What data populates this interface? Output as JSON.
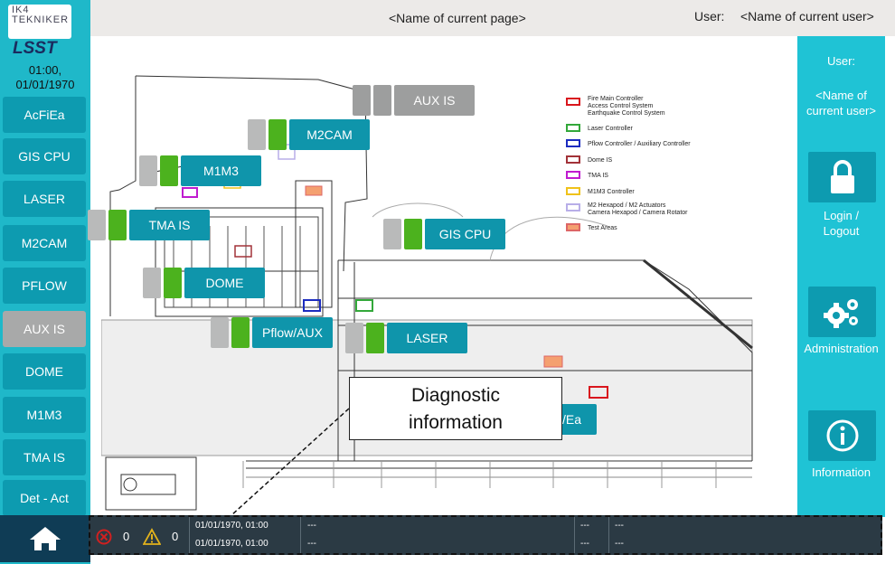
{
  "header": {
    "page_title": "<Name of current page>",
    "user_label": "User:",
    "user_name": "<Name of current user>"
  },
  "logo": {
    "top_line1": "IK4",
    "top_line2": "TEKNIKER",
    "brand": "LSST"
  },
  "clock": {
    "time": "01:00,",
    "date": "01/01/1970"
  },
  "sidebar": {
    "items": [
      {
        "label": "AcFiEa"
      },
      {
        "label": "GIS CPU"
      },
      {
        "label": "LASER"
      },
      {
        "label": "M2CAM"
      },
      {
        "label": "PFLOW"
      },
      {
        "label": "AUX IS"
      },
      {
        "label": "DOME"
      },
      {
        "label": "M1M3"
      },
      {
        "label": "TMA IS"
      },
      {
        "label": "Det - Act"
      }
    ],
    "active": "AUX IS",
    "home_icon": "home-icon"
  },
  "right_panel": {
    "user_label": "User:",
    "user_name_line1": "<Name of",
    "user_name_line2": "current user>",
    "login_line1": "Login /",
    "login_line2": "Logout",
    "admin": "Administration",
    "info": "Information",
    "icons": [
      "lock-icon",
      "gears-icon",
      "info-icon"
    ]
  },
  "overlay_tags": {
    "aux_is": "AUX IS",
    "m2cam": "M2CAM",
    "m1m3": "M1M3",
    "tma_is": "TMA IS",
    "gis_cpu": "GIS CPU",
    "dome": "DOME",
    "pflow": "Pflow/AUX",
    "laser": "LASER",
    "acfiea_partial": "/Ea"
  },
  "legend": [
    {
      "text": "Fire Main Controller",
      "color": "#d9161d"
    },
    {
      "text": "Access Control System",
      "color": ""
    },
    {
      "text": "Earthquake Control System",
      "color": ""
    },
    {
      "text": "Laser Controller",
      "color": "#33a83a"
    },
    {
      "text": "Pflow Controller / Auxiliary Controller",
      "color": "#1c2cbf"
    },
    {
      "text": "Dome IS",
      "color": "#a23238"
    },
    {
      "text": "TMA IS",
      "color": "#c01bd0"
    },
    {
      "text": "M1M3 Controller",
      "color": "#f0c21a"
    },
    {
      "text": "M2 Hexapod / M2 Actuators",
      "color": "#b8aee8"
    },
    {
      "text": "Camera Hexapod / Camera Rotator",
      "color": ""
    },
    {
      "text": "Test Areas",
      "color": "#f4a070"
    }
  ],
  "callout": {
    "line1": "Diagnostic",
    "line2": "information"
  },
  "status_bar": {
    "error_count": "0",
    "warning_count": "0",
    "row1_time": "01/01/1970, 01:00",
    "row2_time": "01/01/1970, 01:00",
    "row1_msg": "---",
    "row2_msg": "---",
    "row1_c3": "---",
    "row2_c3": "---",
    "row1_c4": "---",
    "row2_c4": "---",
    "icons": [
      "error-icon",
      "warning-icon"
    ]
  },
  "colors": {
    "sidebar": "#1fb8c9",
    "button": "#0d9bb0",
    "active_button": "#a8a9a9",
    "status_bar": "#2b3a44",
    "ok_indicator": "#4cb21e"
  }
}
